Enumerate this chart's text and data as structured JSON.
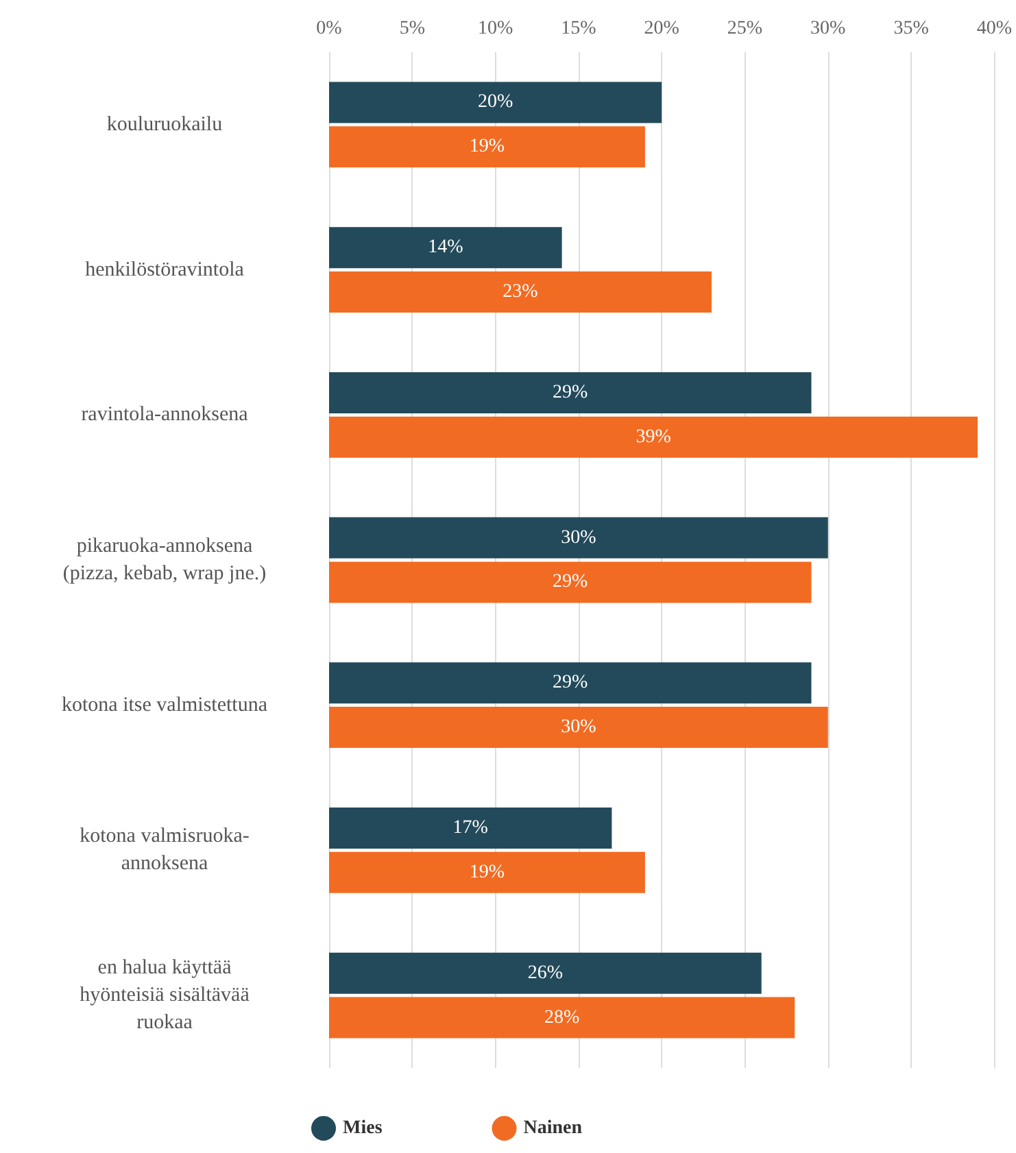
{
  "chart_data": {
    "type": "bar",
    "orientation": "horizontal",
    "categories": [
      "kouluruokailu",
      "henkilöstöravintola",
      "ravintola-annoksena",
      "pikaruoka-annoksena\n(pizza, kebab, wrap jne.)",
      "kotona itse valmistettuna",
      "kotona valmisruoka-\nannoksena",
      "en halua käyttää\nhyönteisiä sisältävää\nruokaa"
    ],
    "series": [
      {
        "name": "Mies",
        "color": "#234a5a",
        "values": [
          20,
          14,
          29,
          30,
          29,
          17,
          26
        ],
        "value_labels": [
          "20%",
          "14%",
          "29%",
          "30%",
          "29%",
          "17%",
          "26%"
        ]
      },
      {
        "name": "Nainen",
        "color": "#f26b22",
        "values": [
          19,
          23,
          39,
          29,
          30,
          19,
          28
        ],
        "value_labels": [
          "19%",
          "23%",
          "39%",
          "29%",
          "30%",
          "19%",
          "28%"
        ]
      }
    ],
    "xlim": [
      0,
      40
    ],
    "xticks": [
      {
        "value": 0,
        "label": "0%"
      },
      {
        "value": 5,
        "label": "5%"
      },
      {
        "value": 10,
        "label": "10%"
      },
      {
        "value": 15,
        "label": "15%"
      },
      {
        "value": 20,
        "label": "20%"
      },
      {
        "value": 25,
        "label": "25%"
      },
      {
        "value": 30,
        "label": "30%"
      },
      {
        "value": 35,
        "label": "35%"
      },
      {
        "value": 40,
        "label": "40%"
      }
    ],
    "grid": "x",
    "legend": "bottom left"
  }
}
